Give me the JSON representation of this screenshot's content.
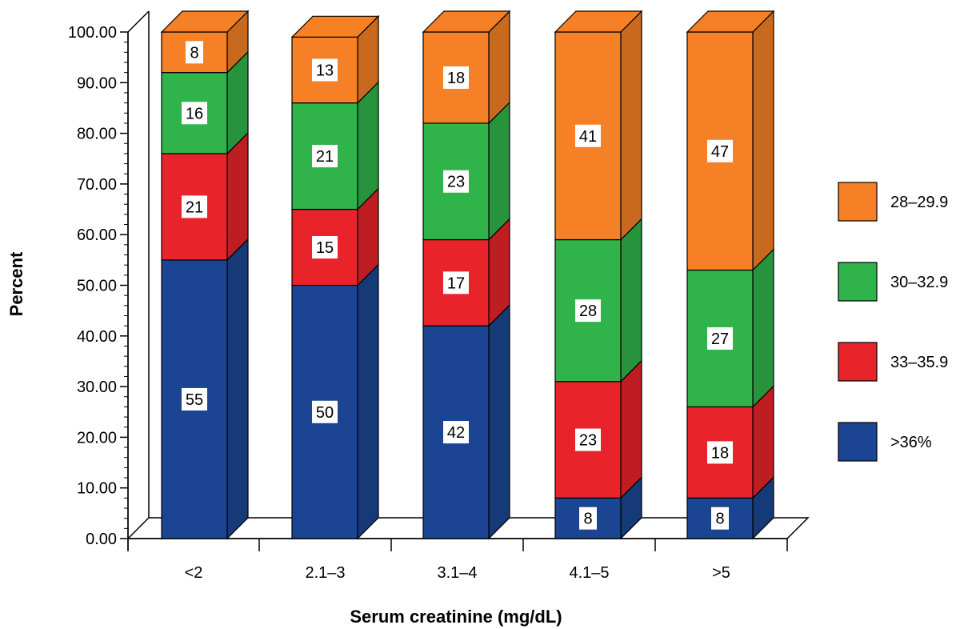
{
  "chart_data": {
    "type": "bar",
    "stacked": true,
    "three_d": true,
    "xlabel": "Serum creatinine (mg/dL)",
    "ylabel": "Percent",
    "ylim": [
      0,
      100
    ],
    "y_ticks": [
      "0.00",
      "10.00",
      "20.00",
      "30.00",
      "40.00",
      "50.00",
      "60.00",
      "70.00",
      "80.00",
      "90.00",
      "100.00"
    ],
    "categories": [
      "<2",
      "2.1–3",
      "3.1–4",
      "4.1–5",
      ">5"
    ],
    "series": [
      {
        "name": ">36%",
        "color": "#1b4592",
        "values": [
          55,
          50,
          42,
          8,
          8
        ]
      },
      {
        "name": "33–35.9",
        "color": "#e8232a",
        "values": [
          21,
          15,
          17,
          23,
          18
        ]
      },
      {
        "name": "30–32.9",
        "color": "#2fb34a",
        "values": [
          16,
          21,
          23,
          28,
          27
        ]
      },
      {
        "name": "28–29.9",
        "color": "#f58025",
        "values": [
          8,
          13,
          18,
          41,
          47
        ]
      }
    ],
    "legend_order": [
      "28–29.9",
      "30–32.9",
      "33–35.9",
      ">36%"
    ],
    "legend_position": "right",
    "grid": false
  }
}
